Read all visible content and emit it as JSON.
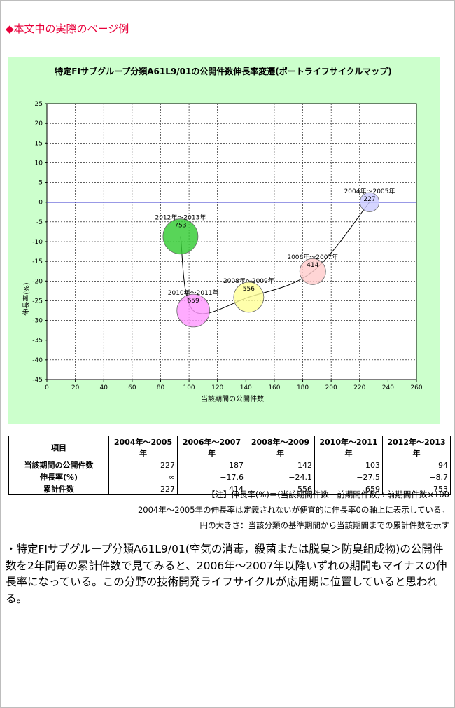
{
  "page_heading": "◆本文中の実際のページ例",
  "chart_data": {
    "type": "bubble",
    "title": "特定FIサブグループ分類A61L9/01の公開件数伸長率変遷(ポートライフサイクルマップ)",
    "xlabel": "当該期間の公開件数",
    "ylabel": "伸長率(%)",
    "xlim": [
      0,
      260
    ],
    "ylim": [
      -45,
      25
    ],
    "x_ticks": [
      0,
      20,
      40,
      60,
      80,
      100,
      120,
      140,
      160,
      180,
      200,
      220,
      240,
      260
    ],
    "y_ticks": [
      25,
      20,
      15,
      10,
      5,
      0,
      -5,
      -10,
      -15,
      -20,
      -25,
      -30,
      -35,
      -40,
      -45
    ],
    "grid": true,
    "points": [
      {
        "period": "2004年～2005年",
        "x": 227,
        "y": 0,
        "size": 227,
        "color": "#ccccff"
      },
      {
        "period": "2006年～2007年",
        "x": 187,
        "y": -17.6,
        "size": 414,
        "color": "#ffcccc"
      },
      {
        "period": "2008年～2009年",
        "x": 142,
        "y": -24.1,
        "size": 556,
        "color": "#ffff99"
      },
      {
        "period": "2010年～2011年",
        "x": 103,
        "y": -27.5,
        "size": 659,
        "color": "#ff99ff"
      },
      {
        "period": "2012年～2013年",
        "x": 94,
        "y": -8.7,
        "size": 753,
        "color": "#33cc33"
      }
    ]
  },
  "table": {
    "headers": [
      "項目",
      "2004年～2005年",
      "2006年～2007年",
      "2008年～2009年",
      "2010年～2011年",
      "2012年～2013年"
    ],
    "rows": [
      {
        "label": "当該期間の公開件数",
        "values": [
          "227",
          "187",
          "142",
          "103",
          "94"
        ]
      },
      {
        "label": "伸長率(%)",
        "values": [
          "∞",
          "−17.6",
          "−24.1",
          "−27.5",
          "−8.7"
        ]
      },
      {
        "label": "累計件数",
        "values": [
          "227",
          "414",
          "556",
          "659",
          "753"
        ]
      }
    ]
  },
  "notes": [
    "【注】伸長率(%)＝(当該期間件数－前期間件数)÷前期間件数×100",
    "2004年～2005年の伸長率は定義されないが便宜的に伸長率0の軸上に表示している。",
    "円の大きさ：当該分類の基準期間から当該期間までの累計件数を示す"
  ],
  "body_text": "・特定FIサブグループ分類A61L9/01(空気の消毒，殺菌または脱臭＞防臭組成物)の公開件数を2年間毎の累計件数で見てみると、2006年～2007年以降いずれの期間もマイナスの伸長率になっている。この分野の技術開発ライフサイクルが応用期に位置していると思われる。"
}
